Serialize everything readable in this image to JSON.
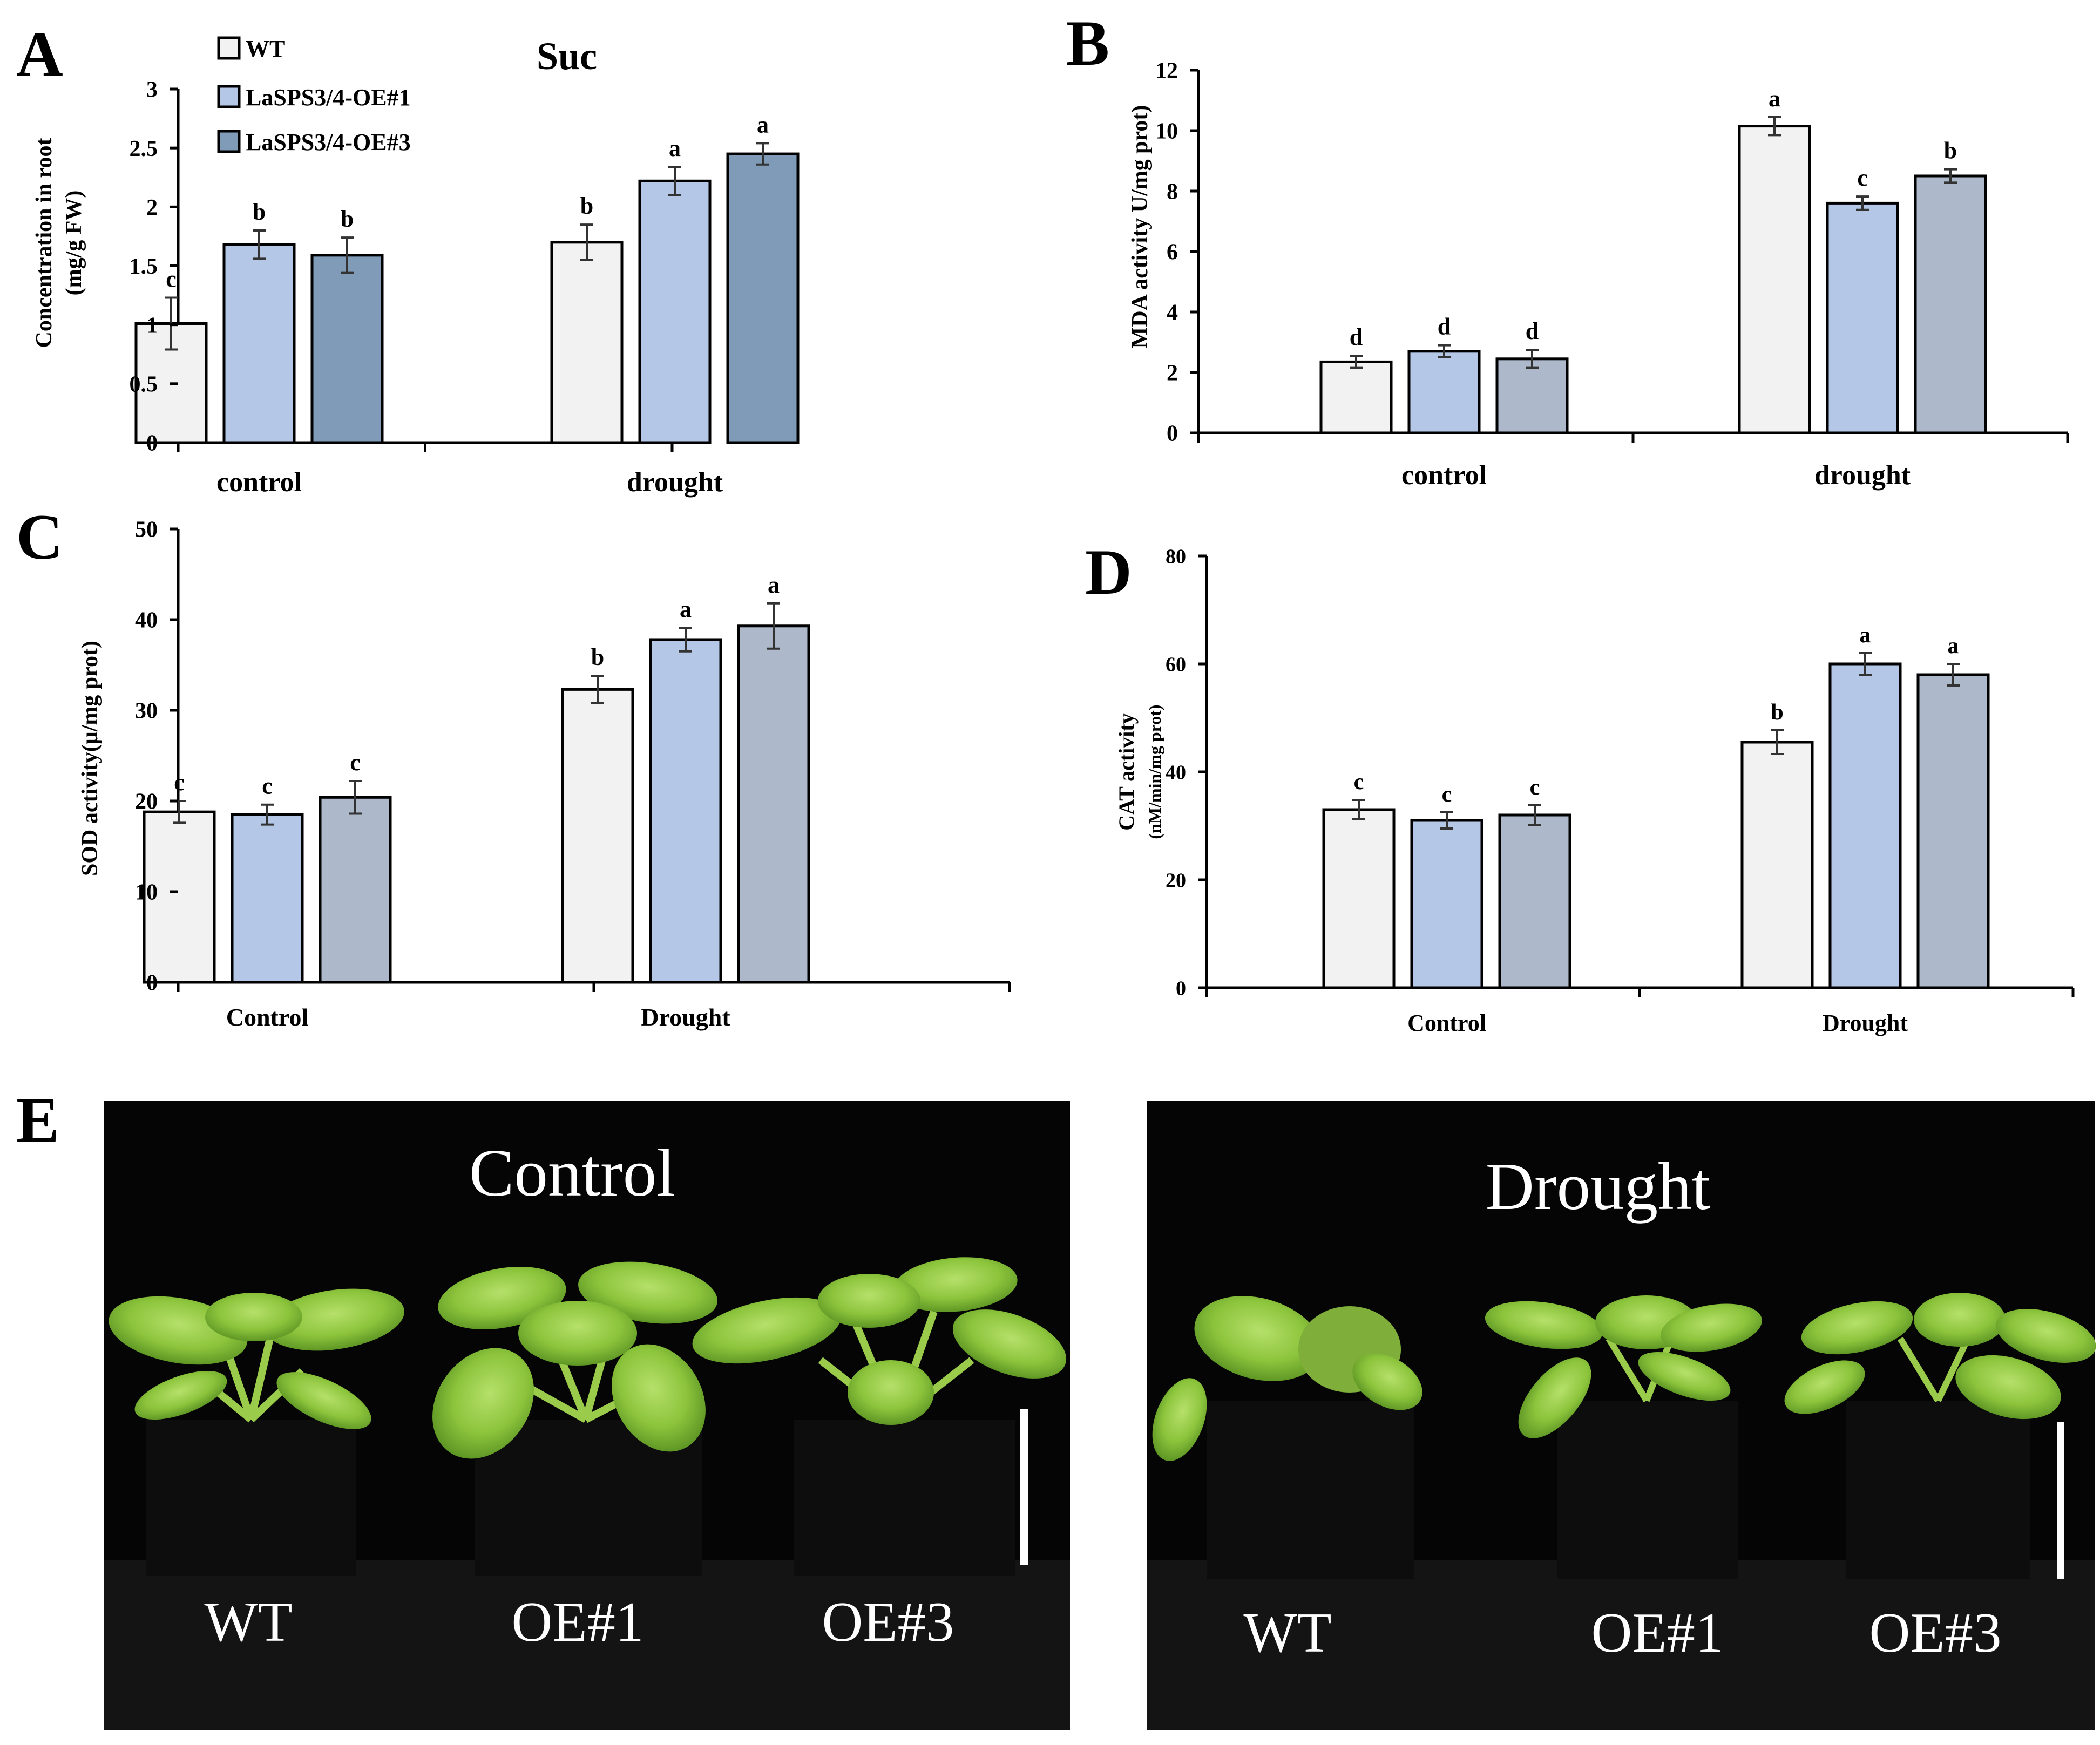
{
  "panels": {
    "A": "A",
    "B": "B",
    "C": "C",
    "D": "D",
    "E": "E"
  },
  "colors": {
    "wt": "#f2f2f2",
    "oe1": "#b4c7e7",
    "oe3_a": "#7f9bb8",
    "oe3_bcd": "#adb9ca",
    "axis": "#000000"
  },
  "chart_data": [
    {
      "panel": "A",
      "type": "bar",
      "title": "Suc",
      "ylabel_line1": "Concentration in root",
      "ylabel_line2": "(mg/g FW)",
      "categories": [
        "control",
        "drought"
      ],
      "ylim": [
        0,
        3
      ],
      "yticks": [
        "0",
        "0.5",
        "1",
        "1.5",
        "2",
        "2.5",
        "3"
      ],
      "legend": {
        "placement": "top-left",
        "entries": [
          "WT",
          "LaSPS3/4-OE#1",
          "LaSPS3/4-OE#3"
        ]
      },
      "series": [
        {
          "name": "WT",
          "values": [
            1.01,
            1.7
          ],
          "errors": [
            0.22,
            0.15
          ],
          "letters": [
            "c",
            "b"
          ]
        },
        {
          "name": "LaSPS3/4-OE#1",
          "values": [
            1.68,
            2.22
          ],
          "errors": [
            0.12,
            0.12
          ],
          "letters": [
            "b",
            "a"
          ]
        },
        {
          "name": "LaSPS3/4-OE#3",
          "values": [
            1.59,
            2.45
          ],
          "errors": [
            0.15,
            0.09
          ],
          "letters": [
            "b",
            "a"
          ]
        }
      ]
    },
    {
      "panel": "B",
      "type": "bar",
      "ylabel_line1": "MDA activity U/mg prot)",
      "categories": [
        "control",
        "drought"
      ],
      "ylim": [
        0,
        12
      ],
      "yticks": [
        "0",
        "2",
        "4",
        "6",
        "8",
        "10",
        "12"
      ],
      "series": [
        {
          "values": [
            2.35,
            10.15
          ],
          "errors": [
            0.2,
            0.3
          ],
          "letters": [
            "d",
            "a"
          ]
        },
        {
          "values": [
            2.7,
            7.6
          ],
          "errors": [
            0.2,
            0.22
          ],
          "letters": [
            "d",
            "c"
          ]
        },
        {
          "values": [
            2.45,
            8.5
          ],
          "errors": [
            0.3,
            0.22
          ],
          "letters": [
            "d",
            "b"
          ]
        }
      ]
    },
    {
      "panel": "C",
      "type": "bar",
      "ylabel_line1": "SOD activity(μ/mg prot)",
      "categories": [
        "Control",
        "Drought"
      ],
      "ylim": [
        0,
        50
      ],
      "yticks": [
        "0",
        "10",
        "20",
        "30",
        "40",
        "50"
      ],
      "series": [
        {
          "values": [
            18.8,
            32.3
          ],
          "errors": [
            1.2,
            1.5
          ],
          "letters": [
            "c",
            "b"
          ]
        },
        {
          "values": [
            18.5,
            37.8
          ],
          "errors": [
            1.1,
            1.3
          ],
          "letters": [
            "c",
            "a"
          ]
        },
        {
          "values": [
            20.4,
            39.3
          ],
          "errors": [
            1.8,
            2.5
          ],
          "letters": [
            "c",
            "a"
          ]
        }
      ]
    },
    {
      "panel": "D",
      "type": "bar",
      "ylabel_line1": "CAT activity",
      "ylabel_line2": "(nM/min/mg prot)",
      "categories": [
        "Control",
        "Drought"
      ],
      "ylim": [
        0,
        80
      ],
      "yticks": [
        "0",
        "20",
        "40",
        "60",
        "80"
      ],
      "series": [
        {
          "values": [
            33,
            45.5
          ],
          "errors": [
            1.8,
            2.2
          ],
          "letters": [
            "c",
            "b"
          ]
        },
        {
          "values": [
            31,
            60
          ],
          "errors": [
            1.5,
            2.0
          ],
          "letters": [
            "c",
            "a"
          ]
        },
        {
          "values": [
            32,
            58
          ],
          "errors": [
            1.8,
            2.0
          ],
          "letters": [
            "c",
            "a"
          ]
        }
      ]
    }
  ],
  "photos": {
    "left": {
      "title": "Control",
      "labels": [
        "WT",
        "OE#1",
        "OE#3"
      ]
    },
    "right": {
      "title": "Drought",
      "labels": [
        "WT",
        "OE#1",
        "OE#3"
      ]
    }
  }
}
